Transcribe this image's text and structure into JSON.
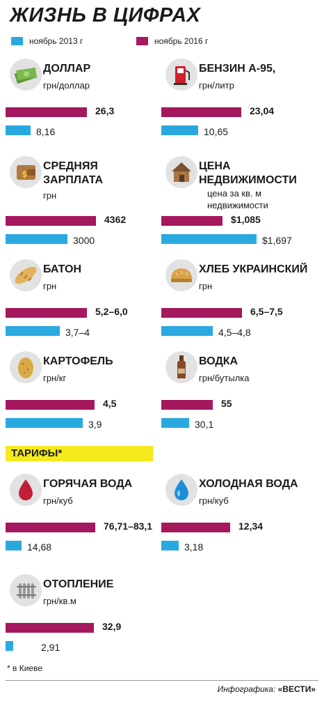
{
  "title": "ЖИЗНЬ В ЦИФРАХ",
  "colors": {
    "series_2013": "#29a9e0",
    "series_2016": "#a4185e",
    "tariffs_strip": "#f5ea1b",
    "icon_bg": "#e2e2e2"
  },
  "legend": {
    "series_2013": "ноябрь 2013 г",
    "series_2016": "ноябрь 2016 г"
  },
  "tariffs_label": "ТАРИФЫ*",
  "footnote": "* в Киеве",
  "credit": {
    "prefix": "Инфографика:",
    "brand": "«ВЕСТИ»"
  },
  "chart_data": {
    "type": "bar",
    "title": "ЖИЗНЬ В ЦИФРАХ",
    "series_names": [
      "ноябрь 2016 г",
      "ноябрь 2013 г"
    ],
    "categories": [
      {
        "id": "dollar",
        "icon": "banknotes-icon",
        "name_lines": [
          "ДОЛЛАР"
        ],
        "unit_lines": [
          "грн/доллар"
        ],
        "value_2016": 26.3,
        "label_2016": "26,3",
        "value_2013": 8.16,
        "label_2013": "8,16"
      },
      {
        "id": "gasoline",
        "icon": "fuel-pump-icon",
        "name_lines": [
          "БЕНЗИН А-95,"
        ],
        "unit_lines": [
          "грн/литр"
        ],
        "value_2016": 23.04,
        "label_2016": "23,04",
        "value_2013": 10.65,
        "label_2013": "10,65"
      },
      {
        "id": "salary",
        "icon": "wallet-icon",
        "name_lines": [
          "СРЕДНЯЯ",
          "ЗАРПЛАТА"
        ],
        "unit_lines": [
          "грн"
        ],
        "value_2016": 4362,
        "label_2016": "4362",
        "value_2013": 3000,
        "label_2013": "3000"
      },
      {
        "id": "realty",
        "icon": "house-icon",
        "name_lines": [
          "ЦЕНА",
          "НЕДВИЖИМОСТИ"
        ],
        "unit_lines": [
          "цена за кв. м",
          "недвижимости"
        ],
        "value_2016": 1085,
        "label_2016": "$1,085",
        "value_2013": 1697,
        "label_2013": "$1,697"
      },
      {
        "id": "baton",
        "icon": "baton-icon",
        "name_lines": [
          "БАТОН"
        ],
        "unit_lines": [
          "грн"
        ],
        "value_2016": [
          5.2,
          6.0
        ],
        "label_2016": "5,2–6,0",
        "value_2013": [
          3.7,
          4
        ],
        "label_2013": "3,7–4"
      },
      {
        "id": "bread",
        "icon": "bread-icon",
        "name_lines": [
          "ХЛЕБ УКРАИНСКИЙ"
        ],
        "unit_lines": [
          "грн"
        ],
        "value_2016": [
          6.5,
          7.5
        ],
        "label_2016": "6,5–7,5",
        "value_2013": [
          4.5,
          4.8
        ],
        "label_2013": "4,5–4,8"
      },
      {
        "id": "potato",
        "icon": "potato-icon",
        "name_lines": [
          "КАРТОФЕЛЬ"
        ],
        "unit_lines": [
          "грн/кг"
        ],
        "value_2016": 4.5,
        "label_2016": "4,5",
        "value_2013": 3.9,
        "label_2013": "3,9"
      },
      {
        "id": "vodka",
        "icon": "bottle-icon",
        "name_lines": [
          "ВОДКА"
        ],
        "unit_lines": [
          "грн/бутылка"
        ],
        "value_2016": 55,
        "label_2016": "55",
        "value_2013": 30.1,
        "label_2013": "30,1"
      },
      {
        "id": "hot_water",
        "icon": "red-drop-icon",
        "name_lines": [
          "ГОРЯЧАЯ ВОДА"
        ],
        "unit_lines": [
          "грн/куб"
        ],
        "value_2016": [
          76.71,
          83.1
        ],
        "label_2016": "76,71–83,1",
        "value_2013": 14.68,
        "label_2013": "14,68"
      },
      {
        "id": "cold_water",
        "icon": "blue-drop-icon",
        "name_lines": [
          "ХОЛОДНАЯ ВОДА"
        ],
        "unit_lines": [
          "грн/куб"
        ],
        "value_2016": 12.34,
        "label_2016": "12,34",
        "value_2013": 3.18,
        "label_2013": "3,18"
      },
      {
        "id": "heating",
        "icon": "radiator-icon",
        "name_lines": [
          "ОТОПЛЕНИЕ"
        ],
        "unit_lines": [
          "грн/кв.м"
        ],
        "value_2016": 32.9,
        "label_2016": "32,9",
        "value_2013": 2.91,
        "label_2013": "2,91"
      }
    ]
  }
}
